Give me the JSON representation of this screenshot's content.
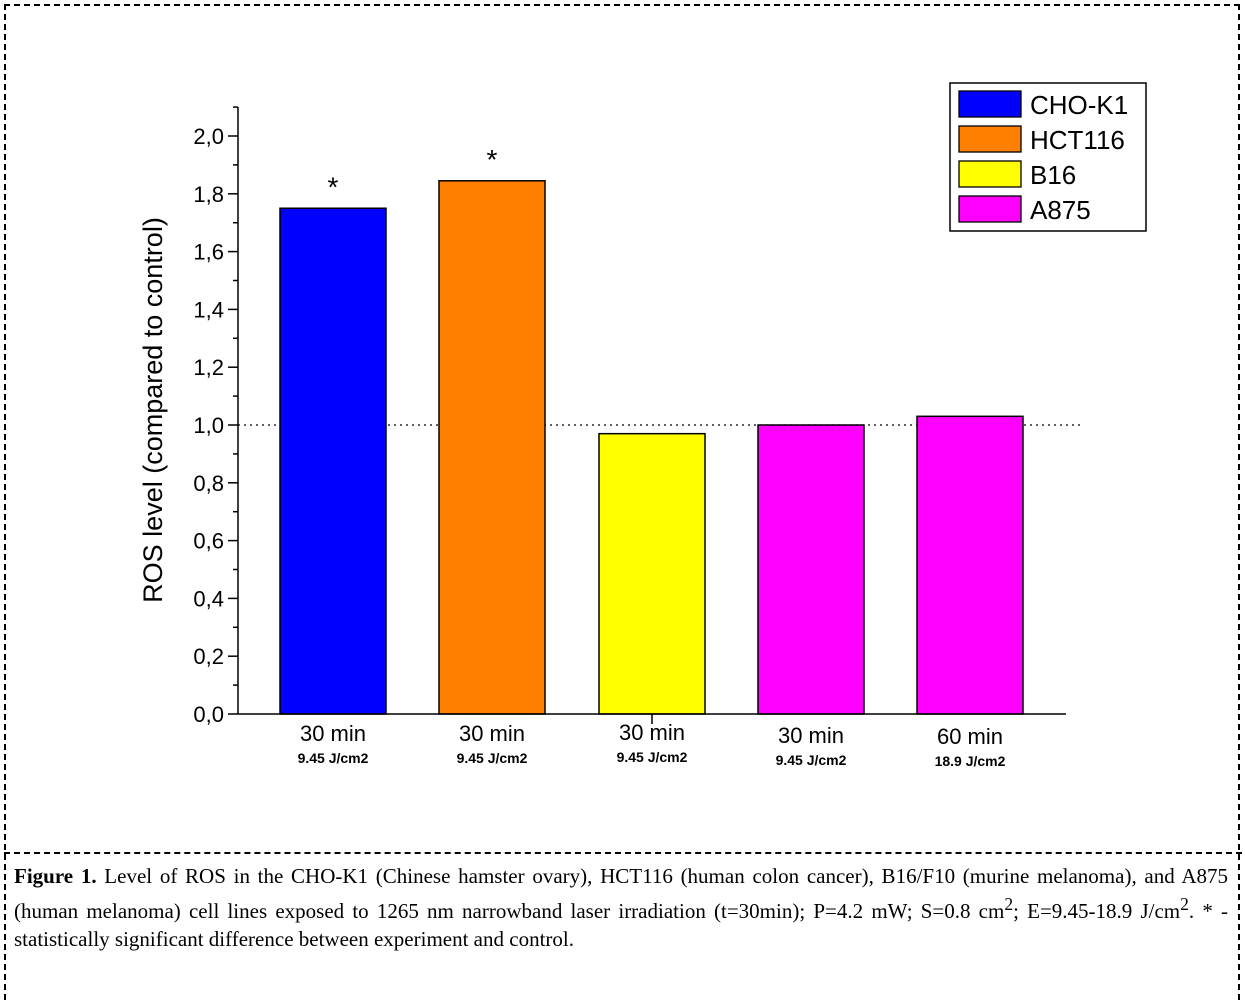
{
  "chart_data": {
    "type": "bar",
    "ylabel": "ROS level (compared to control)",
    "ylim": [
      0,
      2.1
    ],
    "yticks": [
      "0,0",
      "0,2",
      "0,4",
      "0,6",
      "0,8",
      "1,0",
      "1,2",
      "1,4",
      "1,6",
      "1,8",
      "2,0"
    ],
    "reference_line": 1.0,
    "categories": [
      {
        "time": "30 min",
        "dose": "9.45 J/cm2"
      },
      {
        "time": "30 min",
        "dose": "9.45 J/cm2"
      },
      {
        "time": "30 min",
        "dose": "9.45 J/cm2"
      },
      {
        "time": "30 min",
        "dose": "9.45 J/cm2"
      },
      {
        "time": "60 min",
        "dose": "18.9 J/cm2"
      }
    ],
    "bars": [
      {
        "series": "CHO-K1",
        "value": 1.75,
        "color": "#0000ff",
        "mark": "*"
      },
      {
        "series": "HCT116",
        "value": 1.845,
        "color": "#ff8000",
        "mark": "*"
      },
      {
        "series": "B16",
        "value": 0.97,
        "color": "#ffff00",
        "mark": ""
      },
      {
        "series": "A875",
        "value": 1.0,
        "color": "#ff00ff",
        "mark": ""
      },
      {
        "series": "A875",
        "value": 1.03,
        "color": "#ff00ff",
        "mark": ""
      }
    ],
    "legend": {
      "position": "top-right",
      "entries": [
        {
          "name": "CHO-K1",
          "color": "#0000ff"
        },
        {
          "name": "HCT116",
          "color": "#ff8000"
        },
        {
          "name": "B16",
          "color": "#ffff00"
        },
        {
          "name": "A875",
          "color": "#ff00ff"
        }
      ]
    }
  },
  "caption": {
    "label": "Figure 1.",
    "text_before_s": " Level of ROS in the CHO-K1 (Chinese hamster ovary), HCT116 (human colon cancer), B16/F10 (murine melanoma), and A875 (human melanoma) cell lines exposed to 1265 nm narrowband laser irradiation (t=30min); P=4.2 mW; S=0.8 cm",
    "sup1": "2",
    "text_mid": "; E=9.45-18.9 J/cm",
    "sup2": "2",
    "text_end": ". * - statistically significant difference between experiment and control."
  }
}
